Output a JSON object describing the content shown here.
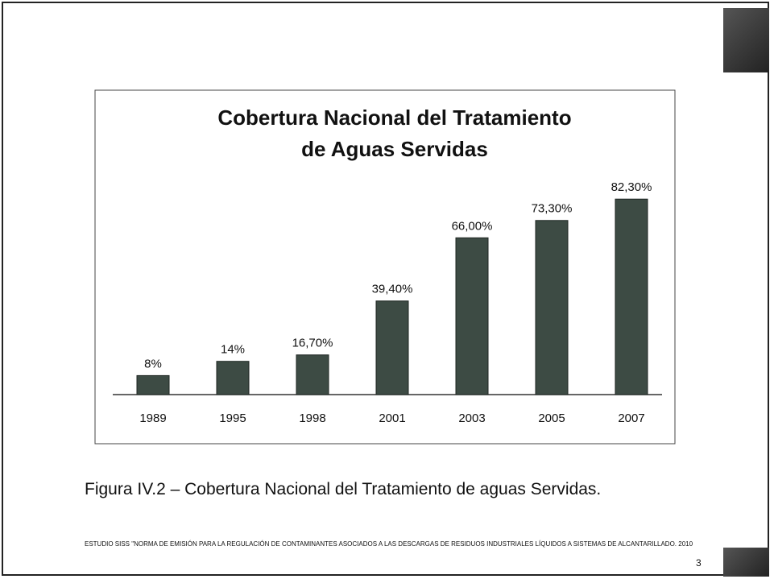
{
  "chart_data": {
    "type": "bar",
    "title": [
      "Cobertura Nacional del Tratamiento",
      "de Aguas Servidas"
    ],
    "categories": [
      "1989",
      "1995",
      "1998",
      "2001",
      "2003",
      "2005",
      "2007"
    ],
    "values": [
      8,
      14,
      16.7,
      39.4,
      66,
      73.3,
      82.3
    ],
    "value_labels": [
      "8%",
      "14%",
      "16,70%",
      "39,40%",
      "66,00%",
      "73,30%",
      "82,30%"
    ],
    "color": "#3d4b44"
  },
  "caption": "Figura IV.2 – Cobertura Nacional del Tratamiento de aguas Servidas.",
  "footer": "ESTUDIO SISS \"NORMA DE EMISIÓN PARA LA REGULACIÓN DE CONTAMINANTES ASOCIADOS A LAS DESCARGAS DE RESIDUOS INDUSTRIALES LÍQUIDOS A SISTEMAS DE ALCANTARILLADO. 2010",
  "page_number": "3"
}
